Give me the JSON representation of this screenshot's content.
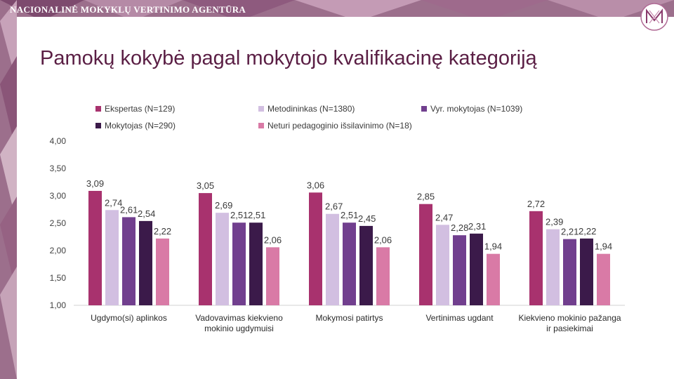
{
  "header": {
    "agency": "NACIONALINĖ MOKYKLŲ VERTINIMO AGENTŪRA",
    "logo": "nmva-monogram"
  },
  "slide": {
    "title": "Pamokų kokybė pagal mokytojo kvalifikacinę kategoriją"
  },
  "colors": {
    "title": "#5a1e44",
    "series": [
      "#a8326e",
      "#d2bfe1",
      "#713f8e",
      "#3b1a4a",
      "#d97aa6"
    ]
  },
  "chart_data": {
    "type": "bar",
    "title": "",
    "xlabel": "",
    "ylabel": "",
    "ylim": [
      1.0,
      4.0
    ],
    "yticks": [
      "1,00",
      "1,50",
      "2,00",
      "2,50",
      "3,00",
      "3,50",
      "4,00"
    ],
    "ytick_values": [
      1.0,
      1.5,
      2.0,
      2.5,
      3.0,
      3.5,
      4.0
    ],
    "grid": false,
    "legend_position": "top",
    "categories": [
      "Ugdymo(si) aplinkos",
      "Vadovavimas kiekvieno mokinio ugdymuisi",
      "Mokymosi patirtys",
      "Vertinimas ugdant",
      "Kiekvieno mokinio pažanga ir pasiekimai"
    ],
    "series": [
      {
        "name": "Ekspertas (N=129)",
        "values": [
          3.09,
          3.05,
          3.06,
          2.85,
          2.72
        ],
        "labels": [
          "3,09",
          "3,05",
          "3,06",
          "2,85",
          "2,72"
        ]
      },
      {
        "name": "Metodininkas (N=1380)",
        "values": [
          2.74,
          2.69,
          2.67,
          2.47,
          2.39
        ],
        "labels": [
          "2,74",
          "2,69",
          "2,67",
          "2,47",
          "2,39"
        ]
      },
      {
        "name": "Vyr. mokytojas (N=1039)",
        "values": [
          2.61,
          2.51,
          2.51,
          2.28,
          2.21
        ],
        "labels": [
          "2,61",
          "2,51",
          "2,51",
          "2,28",
          "2,21"
        ]
      },
      {
        "name": "Mokytojas (N=290)",
        "values": [
          2.54,
          2.51,
          2.45,
          2.31,
          2.22
        ],
        "labels": [
          "2,54",
          "2,51",
          "2,45",
          "2,31",
          "2,22"
        ]
      },
      {
        "name": "Neturi pedagoginio išsilavinimo (N=18)",
        "values": [
          2.22,
          2.06,
          2.06,
          1.94,
          1.94
        ],
        "labels": [
          "2,22",
          "2,06",
          "2,06",
          "1,94",
          "1,94"
        ]
      }
    ]
  }
}
